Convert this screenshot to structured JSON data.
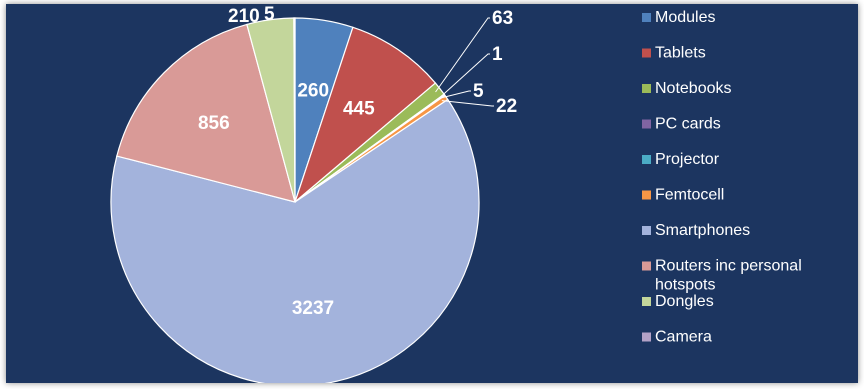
{
  "chart_data": {
    "type": "pie",
    "legend_position": "right",
    "slices": [
      {
        "name": "Modules",
        "value": 260,
        "color": "#4f81bd"
      },
      {
        "name": "Tablets",
        "value": 445,
        "color": "#c0504d"
      },
      {
        "name": "Notebooks",
        "value": 63,
        "color": "#9bbb59"
      },
      {
        "name": "PC cards",
        "value": 1,
        "color": "#8064a2"
      },
      {
        "name": "Projector",
        "value": 5,
        "color": "#4bacc6"
      },
      {
        "name": "Femtocell",
        "value": 22,
        "color": "#f79646"
      },
      {
        "name": "Smartphones",
        "value": 3237,
        "color": "#a3b3dc"
      },
      {
        "name": "Routers inc personal hotspots",
        "value": 856,
        "color": "#d99a97"
      },
      {
        "name": "Dongles",
        "value": 210,
        "color": "#c3d69b"
      },
      {
        "name": "Camera",
        "value": 5,
        "color": "#b3a2c7"
      }
    ]
  }
}
